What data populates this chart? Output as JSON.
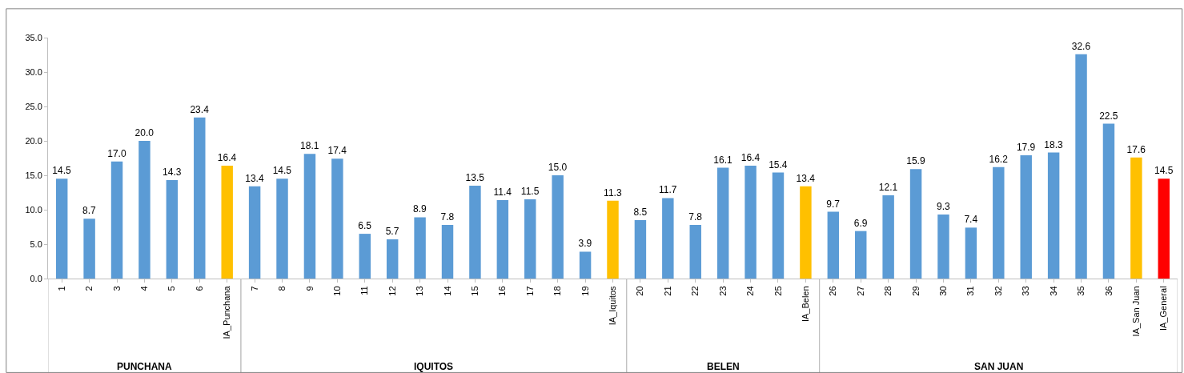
{
  "chart_data": {
    "type": "bar",
    "categories": [
      "1",
      "2",
      "3",
      "4",
      "5",
      "6",
      "IA_Punchana",
      "7",
      "8",
      "9",
      "10",
      "11",
      "12",
      "13",
      "14",
      "15",
      "16",
      "17",
      "18",
      "19",
      "IA_Iquitos",
      "20",
      "21",
      "22",
      "23",
      "24",
      "25",
      "IA_Belen",
      "26",
      "27",
      "28",
      "29",
      "30",
      "31",
      "32",
      "33",
      "34",
      "35",
      "36",
      "IA_San Juan",
      "IA_General"
    ],
    "values": [
      14.5,
      8.7,
      17.0,
      20.0,
      14.3,
      23.4,
      16.4,
      13.4,
      14.5,
      18.1,
      17.4,
      6.5,
      5.7,
      8.9,
      7.8,
      13.5,
      11.4,
      11.5,
      15.0,
      3.9,
      11.3,
      8.5,
      11.7,
      7.8,
      16.1,
      16.4,
      15.4,
      13.4,
      9.7,
      6.9,
      12.1,
      15.9,
      9.3,
      7.4,
      16.2,
      17.9,
      18.3,
      32.6,
      22.5,
      17.6,
      14.5
    ],
    "colors": [
      "#5b9bd5",
      "#5b9bd5",
      "#5b9bd5",
      "#5b9bd5",
      "#5b9bd5",
      "#5b9bd5",
      "#ffc000",
      "#5b9bd5",
      "#5b9bd5",
      "#5b9bd5",
      "#5b9bd5",
      "#5b9bd5",
      "#5b9bd5",
      "#5b9bd5",
      "#5b9bd5",
      "#5b9bd5",
      "#5b9bd5",
      "#5b9bd5",
      "#5b9bd5",
      "#5b9bd5",
      "#ffc000",
      "#5b9bd5",
      "#5b9bd5",
      "#5b9bd5",
      "#5b9bd5",
      "#5b9bd5",
      "#5b9bd5",
      "#ffc000",
      "#5b9bd5",
      "#5b9bd5",
      "#5b9bd5",
      "#5b9bd5",
      "#5b9bd5",
      "#5b9bd5",
      "#5b9bd5",
      "#5b9bd5",
      "#5b9bd5",
      "#5b9bd5",
      "#5b9bd5",
      "#ffc000",
      "#ff0000"
    ],
    "value_labels": [
      "14.5",
      "8.7",
      "17.0",
      "20.0",
      "14.3",
      "23.4",
      "16.4",
      "13.4",
      "14.5",
      "18.1",
      "17.4",
      "6.5",
      "5.7",
      "8.9",
      "7.8",
      "13.5",
      "11.4",
      "11.5",
      "15.0",
      "3.9",
      "11.3",
      "8.5",
      "11.7",
      "7.8",
      "16.1",
      "16.4",
      "15.4",
      "13.4",
      "9.7",
      "6.9",
      "12.1",
      "15.9",
      "9.3",
      "7.4",
      "16.2",
      "17.9",
      "18.3",
      "32.6",
      "22.5",
      "17.6",
      "14.5"
    ],
    "ylim": [
      0,
      35
    ],
    "yticks": [
      {
        "value": 0,
        "label": "0.0"
      },
      {
        "value": 5,
        "label": "5.0"
      },
      {
        "value": 10,
        "label": "10.0"
      },
      {
        "value": 15,
        "label": "15.0"
      },
      {
        "value": 20,
        "label": "20.0"
      },
      {
        "value": 25,
        "label": "25.0"
      },
      {
        "value": 30,
        "label": "30.0"
      },
      {
        "value": 35,
        "label": "35.0"
      }
    ],
    "grid": false,
    "legend": false,
    "annotations": [
      "PUNCHANA",
      "IQUITOS",
      "BELEN",
      "SAN JUAN"
    ]
  }
}
